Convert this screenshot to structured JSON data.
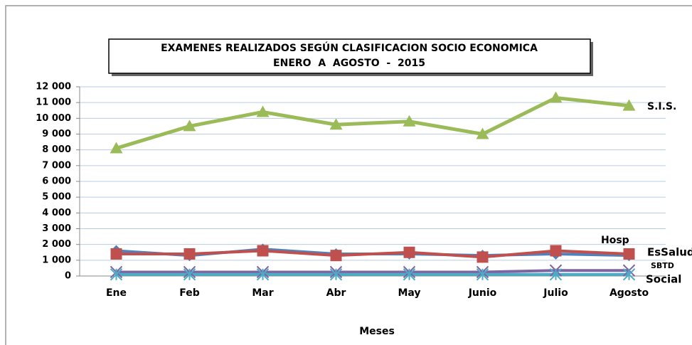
{
  "chart_data": {
    "type": "line",
    "title": "EXAMENES REALIZADOS SEGÚN CLASIFICACION SOCIO ECONOMICA",
    "subtitle": "ENERO  A  AGOSTO  -  2015",
    "x_label": "Meses",
    "categories": [
      "Ene",
      "Feb",
      "Mar",
      "Abr",
      "May",
      "Junio",
      "Julio",
      "Agosto"
    ],
    "series": [
      {
        "name": "S.I.S.",
        "color": "#9bbb59",
        "marker": "triangle",
        "values": [
          8100,
          9500,
          10400,
          9600,
          9800,
          9000,
          11300,
          10800
        ]
      },
      {
        "name": "Hosp",
        "color": "#4f81bd",
        "marker": "diamond",
        "values": [
          1600,
          1300,
          1700,
          1400,
          1400,
          1300,
          1400,
          1300
        ]
      },
      {
        "name": "EsSalud",
        "color": "#c0504d",
        "marker": "square",
        "values": [
          1400,
          1400,
          1600,
          1300,
          1500,
          1200,
          1600,
          1400
        ]
      },
      {
        "name": "SBTD",
        "color": "#8064a2",
        "marker": "x",
        "values": [
          250,
          250,
          250,
          250,
          250,
          250,
          350,
          350
        ]
      },
      {
        "name": "Social",
        "color": "#4bacc6",
        "marker": "star",
        "values": [
          100,
          100,
          100,
          100,
          100,
          100,
          100,
          100
        ]
      }
    ],
    "ylim": [
      0,
      12000
    ],
    "yticks": [
      0,
      {
        "value": 1000,
        "label": "1 000"
      },
      {
        "value": 2000,
        "label": "2 000"
      },
      {
        "value": 3000,
        "label": "3 000"
      },
      {
        "value": 4000,
        "label": "4 000"
      },
      {
        "value": 5000,
        "label": "5 000"
      },
      {
        "value": 6000,
        "label": "6 000"
      },
      {
        "value": 7000,
        "label": "7 000"
      },
      {
        "value": 8000,
        "label": "8 000"
      },
      {
        "value": 9000,
        "label": "9 000"
      },
      {
        "value": 10000,
        "label": "10 000"
      },
      {
        "value": 11000,
        "label": "11 000"
      },
      {
        "value": 12000,
        "label": "12 000"
      }
    ],
    "grid": true
  }
}
